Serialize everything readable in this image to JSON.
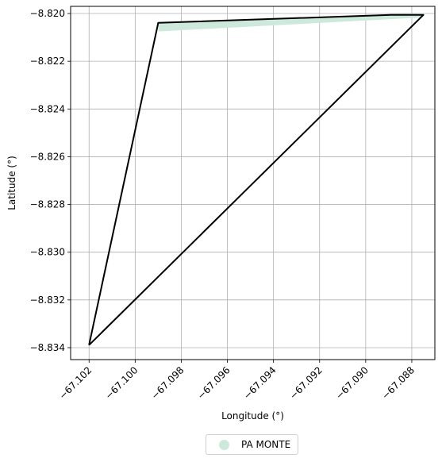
{
  "chart_data": {
    "type": "line",
    "title": "",
    "xlabel": "Longitude (°)",
    "ylabel": "Latitude (°)",
    "xlim": [
      -67.1028,
      -67.087
    ],
    "ylim": [
      -8.8345,
      -8.8197
    ],
    "x_ticks": [
      -67.102,
      -67.1,
      -67.098,
      -67.096,
      -67.094,
      -67.092,
      -67.09,
      -67.088
    ],
    "y_ticks": [
      -8.82,
      -8.822,
      -8.824,
      -8.826,
      -8.828,
      -8.83,
      -8.832,
      -8.834
    ],
    "x_tick_labels": [
      "−67.102",
      "−67.100",
      "−67.098",
      "−67.096",
      "−67.094",
      "−67.092",
      "−67.090",
      "−67.088"
    ],
    "y_tick_labels": [
      "−8.820",
      "−8.822",
      "−8.824",
      "−8.826",
      "−8.828",
      "−8.830",
      "−8.832",
      "−8.834"
    ],
    "grid": true,
    "legend_placement": "bottom-center",
    "series": [
      {
        "name": "PA MONTE",
        "color": "#cce9dc",
        "kind": "filled-area",
        "points": [
          [
            -67.099,
            -8.82039
          ],
          [
            -67.089,
            -8.82003
          ],
          [
            -67.0874,
            -8.82
          ],
          [
            -67.0876,
            -8.82017
          ],
          [
            -67.099,
            -8.82075
          ]
        ]
      },
      {
        "color": "#000000",
        "kind": "outline",
        "points": [
          [
            -67.102,
            -8.83389
          ],
          [
            -67.099,
            -8.82039
          ],
          [
            -67.0889,
            -8.82006
          ],
          [
            -67.0875,
            -8.82006
          ],
          [
            -67.102,
            -8.83389
          ]
        ]
      }
    ]
  }
}
